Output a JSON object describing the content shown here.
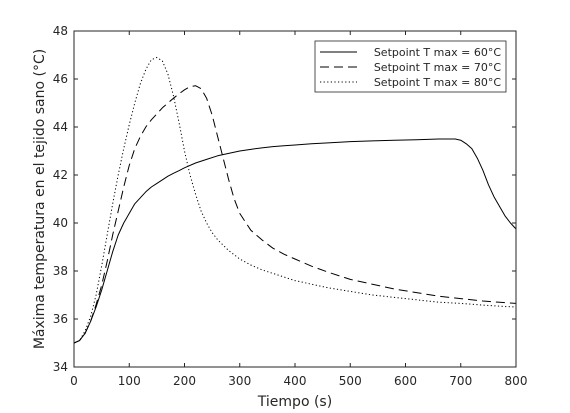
{
  "chart_data": {
    "type": "line",
    "title": "",
    "xlabel": "Tiempo (s)",
    "ylabel": "Máxima temperatura en el tejido sano (°C)",
    "xlim": [
      0,
      800
    ],
    "ylim": [
      34,
      48
    ],
    "xticks": [
      0,
      100,
      200,
      300,
      400,
      500,
      600,
      700,
      800
    ],
    "yticks": [
      34,
      36,
      38,
      40,
      42,
      44,
      46,
      48
    ],
    "grid": false,
    "legend_position": "top-right",
    "series": [
      {
        "name": "Setpoint T max = 60°C",
        "style": "solid",
        "color": "#000000",
        "x": [
          0,
          10,
          20,
          30,
          40,
          50,
          60,
          70,
          80,
          90,
          100,
          110,
          120,
          130,
          140,
          150,
          160,
          170,
          180,
          190,
          200,
          220,
          240,
          260,
          280,
          300,
          320,
          340,
          360,
          380,
          400,
          430,
          460,
          500,
          540,
          580,
          620,
          660,
          690,
          700,
          710,
          720,
          730,
          740,
          750,
          760,
          770,
          780,
          790,
          800
        ],
        "y": [
          35.0,
          35.1,
          35.4,
          35.9,
          36.5,
          37.2,
          38.0,
          38.8,
          39.5,
          40.0,
          40.4,
          40.8,
          41.05,
          41.3,
          41.5,
          41.65,
          41.8,
          41.95,
          42.07,
          42.18,
          42.3,
          42.5,
          42.65,
          42.8,
          42.9,
          43.0,
          43.07,
          43.13,
          43.18,
          43.22,
          43.25,
          43.3,
          43.34,
          43.39,
          43.42,
          43.45,
          43.47,
          43.5,
          43.5,
          43.45,
          43.3,
          43.1,
          42.7,
          42.2,
          41.6,
          41.1,
          40.7,
          40.3,
          40.0,
          39.75
        ]
      },
      {
        "name": "Setpoint T max = 70°C",
        "style": "dashed",
        "color": "#000000",
        "x": [
          0,
          10,
          20,
          30,
          40,
          50,
          60,
          70,
          80,
          90,
          100,
          110,
          120,
          130,
          140,
          150,
          160,
          170,
          180,
          190,
          200,
          210,
          220,
          230,
          240,
          250,
          260,
          270,
          280,
          290,
          300,
          320,
          340,
          360,
          380,
          400,
          430,
          460,
          500,
          540,
          580,
          620,
          660,
          700,
          740,
          780,
          800
        ],
        "y": [
          35.0,
          35.1,
          35.4,
          35.9,
          36.6,
          37.4,
          38.4,
          39.5,
          40.5,
          41.5,
          42.4,
          43.1,
          43.6,
          44.0,
          44.3,
          44.55,
          44.8,
          45.0,
          45.2,
          45.38,
          45.55,
          45.68,
          45.72,
          45.6,
          45.2,
          44.5,
          43.6,
          42.7,
          41.8,
          41.0,
          40.4,
          39.7,
          39.3,
          38.95,
          38.7,
          38.5,
          38.2,
          37.95,
          37.65,
          37.45,
          37.25,
          37.1,
          36.95,
          36.85,
          36.75,
          36.68,
          36.65
        ]
      },
      {
        "name": "Setpoint T max = 80°C",
        "style": "dotted",
        "color": "#000000",
        "x": [
          0,
          10,
          20,
          30,
          40,
          50,
          60,
          70,
          80,
          90,
          100,
          110,
          120,
          130,
          140,
          150,
          160,
          170,
          180,
          190,
          200,
          210,
          220,
          230,
          240,
          250,
          260,
          280,
          300,
          320,
          340,
          360,
          380,
          400,
          430,
          460,
          500,
          540,
          580,
          620,
          660,
          700,
          740,
          780,
          800
        ],
        "y": [
          35.0,
          35.1,
          35.5,
          36.1,
          37.0,
          38.2,
          39.5,
          40.8,
          42.0,
          43.1,
          44.1,
          45.0,
          45.8,
          46.4,
          46.8,
          46.9,
          46.75,
          46.2,
          45.3,
          44.2,
          43.0,
          42.0,
          41.2,
          40.5,
          40.0,
          39.6,
          39.3,
          38.85,
          38.5,
          38.25,
          38.05,
          37.9,
          37.75,
          37.6,
          37.45,
          37.3,
          37.15,
          37.0,
          36.9,
          36.8,
          36.7,
          36.65,
          36.58,
          36.52,
          36.5
        ]
      }
    ]
  }
}
